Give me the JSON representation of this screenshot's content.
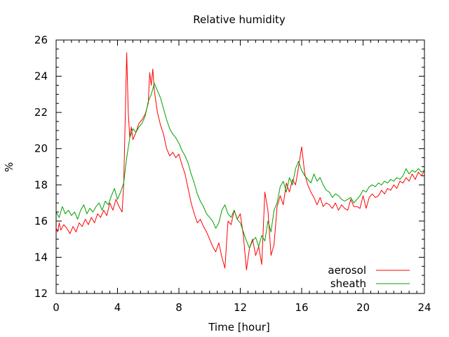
{
  "chart_data": {
    "type": "line",
    "title": "Relative humidity",
    "xlabel": "Time [hour]",
    "ylabel": "%",
    "xlim": [
      0,
      24
    ],
    "ylim": [
      12,
      26
    ],
    "x_ticks": [
      0,
      4,
      8,
      12,
      16,
      20,
      24
    ],
    "y_ticks": [
      12,
      14,
      16,
      18,
      20,
      22,
      24,
      26
    ],
    "x_minor_step": 0.5,
    "y_minor_step": 0.5,
    "grid": false,
    "legend": {
      "position": "bottom-right"
    },
    "series": [
      {
        "name": "aerosol",
        "color": "#ff0000",
        "x": [
          0,
          0.1,
          0.2,
          0.3,
          0.5,
          0.7,
          0.9,
          1.1,
          1.3,
          1.5,
          1.7,
          1.9,
          2.1,
          2.3,
          2.5,
          2.7,
          2.9,
          3.1,
          3.3,
          3.5,
          3.7,
          3.9,
          4.1,
          4.3,
          4.4,
          4.5,
          4.6,
          4.7,
          4.8,
          4.9,
          5.0,
          5.2,
          5.4,
          5.6,
          5.8,
          6.0,
          6.1,
          6.2,
          6.3,
          6.4,
          6.5,
          6.6,
          6.8,
          7.0,
          7.2,
          7.4,
          7.6,
          7.8,
          8.0,
          8.2,
          8.4,
          8.6,
          8.8,
          9.0,
          9.2,
          9.4,
          9.6,
          9.8,
          10.0,
          10.2,
          10.4,
          10.6,
          10.8,
          11.0,
          11.2,
          11.4,
          11.6,
          11.8,
          12.0,
          12.2,
          12.4,
          12.6,
          12.8,
          13.0,
          13.2,
          13.4,
          13.6,
          13.8,
          14.0,
          14.2,
          14.4,
          14.6,
          14.8,
          15.0,
          15.2,
          15.4,
          15.6,
          15.8,
          16.0,
          16.2,
          16.4,
          16.6,
          16.8,
          17.0,
          17.2,
          17.4,
          17.6,
          17.8,
          18.0,
          18.2,
          18.4,
          18.6,
          18.8,
          19.0,
          19.2,
          19.4,
          19.6,
          19.8,
          20.0,
          20.2,
          20.4,
          20.6,
          20.8,
          21.0,
          21.2,
          21.4,
          21.6,
          21.8,
          22.0,
          22.2,
          22.4,
          22.6,
          22.8,
          23.0,
          23.2,
          23.4,
          23.6,
          23.8,
          24.0
        ],
        "y": [
          15.6,
          15.4,
          15.9,
          15.5,
          15.8,
          15.6,
          15.3,
          15.7,
          15.4,
          15.9,
          15.7,
          16.1,
          15.8,
          16.2,
          15.9,
          16.4,
          16.2,
          16.6,
          16.3,
          17.0,
          16.6,
          17.2,
          16.8,
          16.5,
          18.0,
          21.5,
          25.3,
          22.0,
          20.6,
          21.2,
          20.5,
          20.9,
          21.4,
          21.6,
          21.9,
          22.5,
          24.2,
          23.5,
          24.4,
          23.2,
          22.6,
          22.0,
          21.3,
          20.8,
          20.0,
          19.6,
          19.8,
          19.5,
          19.7,
          19.1,
          18.6,
          17.8,
          17.0,
          16.4,
          15.9,
          16.1,
          15.7,
          15.4,
          15.0,
          14.6,
          14.3,
          14.8,
          14.0,
          13.4,
          16.0,
          15.8,
          16.6,
          16.1,
          16.4,
          15.2,
          13.3,
          14.5,
          15.0,
          14.1,
          14.6,
          13.6,
          17.6,
          16.6,
          14.1,
          14.7,
          16.8,
          17.4,
          16.9,
          18.1,
          17.6,
          18.3,
          18.0,
          19.0,
          20.1,
          18.6,
          18.0,
          17.6,
          17.3,
          16.9,
          17.3,
          16.8,
          17.0,
          16.9,
          16.7,
          17.0,
          16.6,
          16.9,
          16.7,
          16.6,
          17.2,
          16.8,
          16.8,
          16.7,
          17.4,
          16.7,
          17.3,
          17.5,
          17.3,
          17.4,
          17.7,
          17.5,
          17.8,
          17.7,
          18.0,
          17.8,
          18.2,
          18.1,
          18.4,
          18.2,
          18.6,
          18.3,
          18.7,
          18.5,
          18.8
        ]
      },
      {
        "name": "sheath",
        "color": "#00a000",
        "x": [
          0,
          0.2,
          0.4,
          0.6,
          0.8,
          1.0,
          1.2,
          1.4,
          1.6,
          1.8,
          2.0,
          2.2,
          2.4,
          2.6,
          2.8,
          3.0,
          3.2,
          3.4,
          3.6,
          3.8,
          4.0,
          4.2,
          4.4,
          4.6,
          4.8,
          5.0,
          5.2,
          5.4,
          5.6,
          5.8,
          6.0,
          6.2,
          6.4,
          6.6,
          6.8,
          7.0,
          7.2,
          7.4,
          7.6,
          7.8,
          8.0,
          8.2,
          8.4,
          8.6,
          8.8,
          9.0,
          9.2,
          9.4,
          9.6,
          9.8,
          10.0,
          10.2,
          10.4,
          10.6,
          10.8,
          11.0,
          11.2,
          11.4,
          11.6,
          11.8,
          12.0,
          12.2,
          12.4,
          12.6,
          12.8,
          13.0,
          13.2,
          13.4,
          13.6,
          13.8,
          14.0,
          14.2,
          14.4,
          14.6,
          14.8,
          15.0,
          15.2,
          15.4,
          15.6,
          15.8,
          16.0,
          16.2,
          16.4,
          16.6,
          16.8,
          17.0,
          17.2,
          17.4,
          17.6,
          17.8,
          18.0,
          18.2,
          18.4,
          18.6,
          18.8,
          19.0,
          19.2,
          19.4,
          19.6,
          19.8,
          20.0,
          20.2,
          20.4,
          20.6,
          20.8,
          21.0,
          21.2,
          21.4,
          21.6,
          21.8,
          22.0,
          22.2,
          22.4,
          22.6,
          22.8,
          23.0,
          23.2,
          23.4,
          23.6,
          23.8,
          24.0
        ],
        "y": [
          16.5,
          16.2,
          16.8,
          16.4,
          16.6,
          16.3,
          16.5,
          16.1,
          16.6,
          16.9,
          16.4,
          16.7,
          16.5,
          16.8,
          17.0,
          16.6,
          17.1,
          16.9,
          17.4,
          17.8,
          17.2,
          17.6,
          18.1,
          19.5,
          20.6,
          21.1,
          20.9,
          21.2,
          21.4,
          21.8,
          22.6,
          23.0,
          23.6,
          23.2,
          22.8,
          22.2,
          21.6,
          21.1,
          20.8,
          20.6,
          20.3,
          19.9,
          19.6,
          19.2,
          18.6,
          18.1,
          17.5,
          17.1,
          16.8,
          16.4,
          16.2,
          16.0,
          15.6,
          15.9,
          16.6,
          16.9,
          16.4,
          16.2,
          16.6,
          16.1,
          15.9,
          15.4,
          14.9,
          14.5,
          14.9,
          15.1,
          14.6,
          15.2,
          14.9,
          16.0,
          15.4,
          16.6,
          17.0,
          17.9,
          18.2,
          17.6,
          18.4,
          18.0,
          18.9,
          19.3,
          18.8,
          18.5,
          18.3,
          18.1,
          18.6,
          18.2,
          18.4,
          18.0,
          17.7,
          17.6,
          17.3,
          17.5,
          17.4,
          17.2,
          17.1,
          17.2,
          17.3,
          17.0,
          17.2,
          17.4,
          17.7,
          17.6,
          17.9,
          18.0,
          17.9,
          18.1,
          18.0,
          18.2,
          18.1,
          18.3,
          18.2,
          18.4,
          18.3,
          18.5,
          18.9,
          18.6,
          18.8,
          18.7,
          18.9,
          18.7,
          18.8
        ]
      }
    ]
  }
}
